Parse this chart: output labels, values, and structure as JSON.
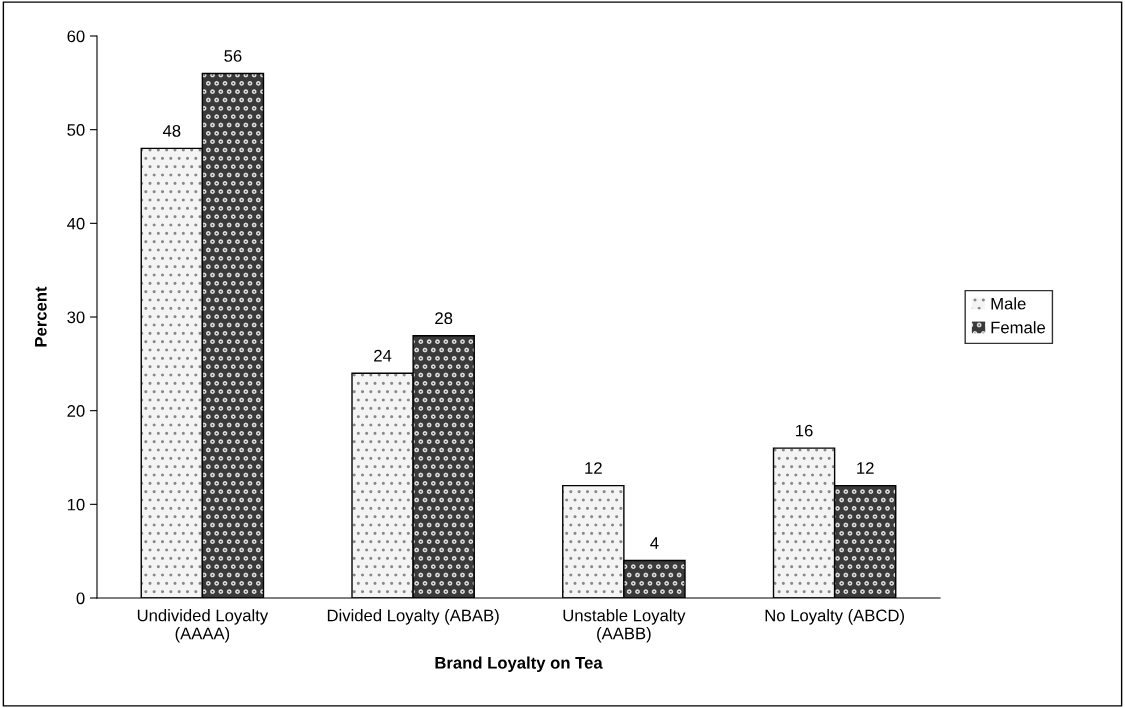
{
  "chart_data": {
    "type": "bar",
    "xlabel": "Brand Loyalty on Tea",
    "ylabel": "Percent",
    "categories": [
      "Undivided Loyalty\n(AAAA)",
      "Divided Loyalty (ABAB)",
      "Unstable Loyalty\n(AABB)",
      "No Loyalty (ABCD)"
    ],
    "series": [
      {
        "name": "Male",
        "color": "#f4f4f4",
        "values": [
          48,
          24,
          12,
          16
        ]
      },
      {
        "name": "Female",
        "color": "#3a3a3a",
        "values": [
          56,
          28,
          4,
          12
        ]
      }
    ],
    "ylim": [
      0,
      60
    ],
    "yticks": [
      0,
      10,
      20,
      30,
      40,
      50,
      60
    ],
    "data_labels": true,
    "legend": "right",
    "grid": false
  }
}
